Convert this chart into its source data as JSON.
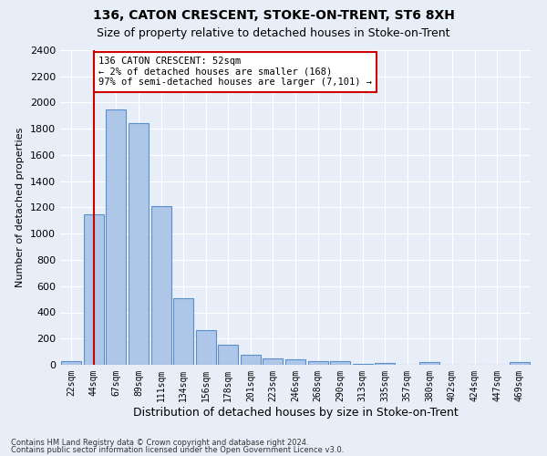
{
  "title1": "136, CATON CRESCENT, STOKE-ON-TRENT, ST6 8XH",
  "title2": "Size of property relative to detached houses in Stoke-on-Trent",
  "xlabel": "Distribution of detached houses by size in Stoke-on-Trent",
  "ylabel": "Number of detached properties",
  "categories": [
    "22sqm",
    "44sqm",
    "67sqm",
    "89sqm",
    "111sqm",
    "134sqm",
    "156sqm",
    "178sqm",
    "201sqm",
    "223sqm",
    "246sqm",
    "268sqm",
    "290sqm",
    "313sqm",
    "335sqm",
    "357sqm",
    "380sqm",
    "402sqm",
    "424sqm",
    "447sqm",
    "469sqm"
  ],
  "values": [
    30,
    1150,
    1950,
    1840,
    1210,
    510,
    265,
    155,
    80,
    50,
    45,
    30,
    25,
    10,
    15,
    0,
    20,
    0,
    0,
    0,
    20
  ],
  "bar_color": "#aec6e8",
  "bar_edge_color": "#5b8fc9",
  "ylim": [
    0,
    2400
  ],
  "yticks": [
    0,
    200,
    400,
    600,
    800,
    1000,
    1200,
    1400,
    1600,
    1800,
    2000,
    2200,
    2400
  ],
  "annotation_text": "136 CATON CRESCENT: 52sqm\n← 2% of detached houses are smaller (168)\n97% of semi-detached houses are larger (7,101) →",
  "annotation_box_color": "#ffffff",
  "annotation_box_edge": "#cc0000",
  "vline_x": 1,
  "vline_color": "#cc0000",
  "footnote1": "Contains HM Land Registry data © Crown copyright and database right 2024.",
  "footnote2": "Contains public sector information licensed under the Open Government Licence v3.0.",
  "bg_color": "#e8eef8",
  "plot_bg_color": "#e8eef8",
  "grid_color": "#ffffff",
  "title1_fontsize": 10,
  "title2_fontsize": 9,
  "xlabel_fontsize": 9,
  "ylabel_fontsize": 8
}
